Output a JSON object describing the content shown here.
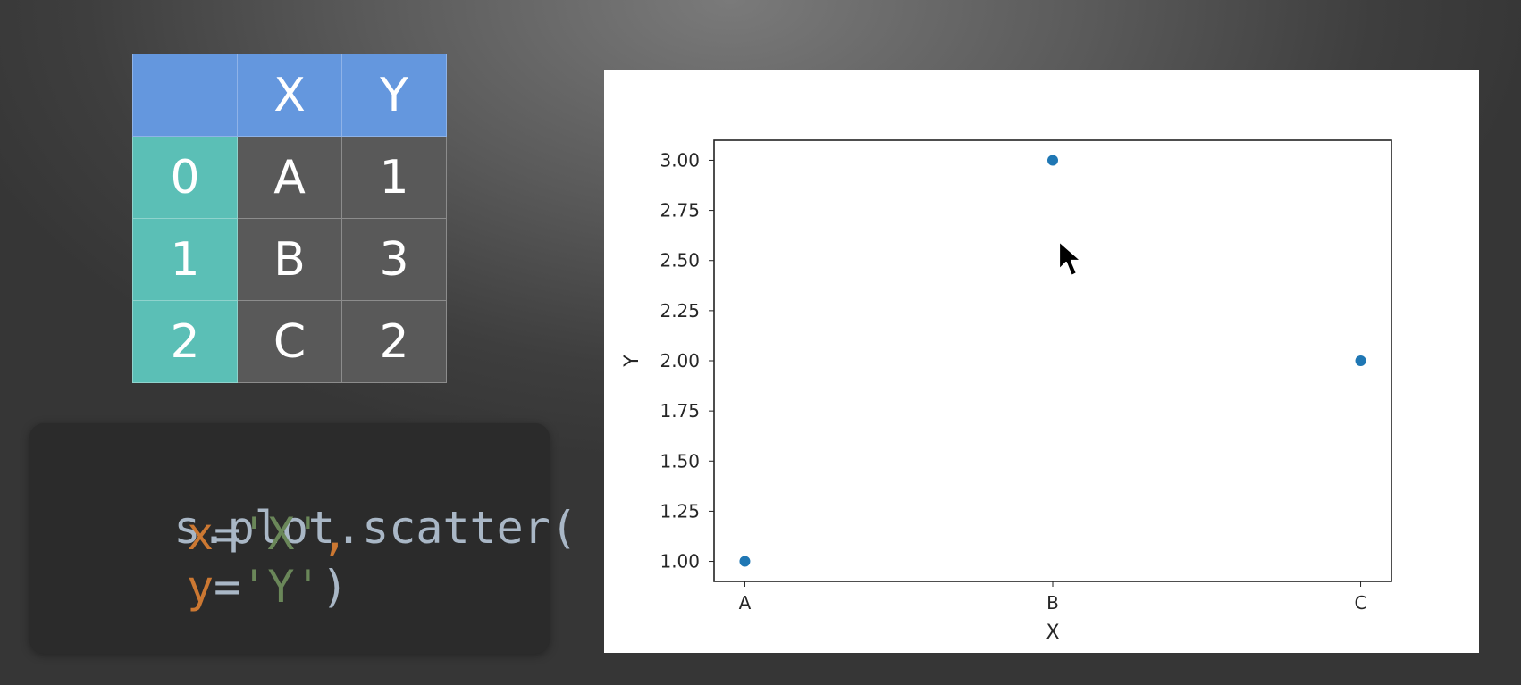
{
  "table": {
    "columns": [
      "",
      "X",
      "Y"
    ],
    "rows": [
      {
        "index": "0",
        "X": "A",
        "Y": "1"
      },
      {
        "index": "1",
        "X": "B",
        "Y": "3"
      },
      {
        "index": "2",
        "X": "C",
        "Y": "2"
      }
    ],
    "colors": {
      "header": "#6497de",
      "index": "#5bbfb6",
      "cell": "#595959"
    }
  },
  "code": {
    "line1": "s.plot.scatter(",
    "line2_kw": "x",
    "line2_eq": "=",
    "line2_str": "'X'",
    "line2_comma": ",",
    "line3_kw": "y",
    "line3_eq": "=",
    "line3_str": "'Y'",
    "line3_close": ")",
    "colors": {
      "default": "#a9b7c6",
      "keyword": "#cc7832",
      "string": "#6a8759",
      "background": "#2b2b2b"
    }
  },
  "chart_data": {
    "type": "scatter",
    "categories": [
      "A",
      "B",
      "C"
    ],
    "values": [
      1,
      3,
      2
    ],
    "xlabel": "X",
    "ylabel": "Y",
    "ylim": [
      0.9,
      3.1
    ],
    "yticks": [
      "1.00",
      "1.25",
      "1.50",
      "1.75",
      "2.00",
      "2.25",
      "2.50",
      "2.75",
      "3.00"
    ],
    "grid": false,
    "point_color": "#1f77b4"
  },
  "cursor": {
    "icon": "mouse-pointer-icon"
  }
}
